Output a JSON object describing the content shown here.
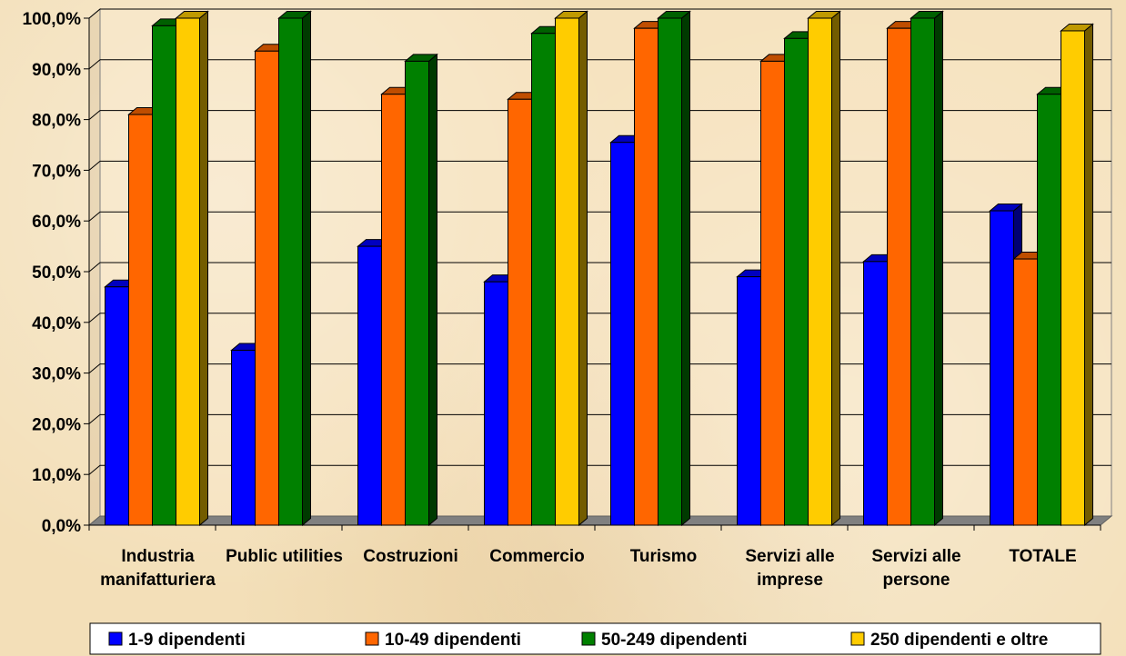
{
  "chart_data": {
    "type": "bar",
    "title": "",
    "xlabel": "",
    "ylabel": "",
    "ylim": [
      0,
      100
    ],
    "y_ticks": [
      "0,0%",
      "10,0%",
      "20,0%",
      "30,0%",
      "40,0%",
      "50,0%",
      "60,0%",
      "70,0%",
      "80,0%",
      "90,0%",
      "100,0%"
    ],
    "categories": [
      [
        "Industria",
        "manifatturiera"
      ],
      [
        "Public utilities"
      ],
      [
        "Costruzioni"
      ],
      [
        "Commercio"
      ],
      [
        "Turismo"
      ],
      [
        "Servizi alle",
        "imprese"
      ],
      [
        "Servizi alle",
        "persone"
      ],
      [
        "TOTALE"
      ]
    ],
    "series": [
      {
        "name": "1-9 dipendenti",
        "color": "#0000ff",
        "values": [
          47,
          34.5,
          55,
          48,
          75.5,
          49,
          52,
          62
        ]
      },
      {
        "name": "10-49 dipendenti",
        "color": "#ff6600",
        "values": [
          81,
          93.5,
          85,
          84,
          98,
          91.5,
          98,
          52.5
        ]
      },
      {
        "name": "50-249 dipendenti",
        "color": "#008000",
        "values": [
          98.5,
          100,
          91.5,
          97,
          100,
          96,
          100,
          85
        ]
      },
      {
        "name": "250 dipendenti e oltre",
        "color": "#ffcc00",
        "values": [
          100,
          null,
          null,
          100,
          null,
          100,
          null,
          97.5
        ]
      }
    ],
    "grid": true,
    "legend_position": "bottom",
    "style": "3d-bar"
  }
}
